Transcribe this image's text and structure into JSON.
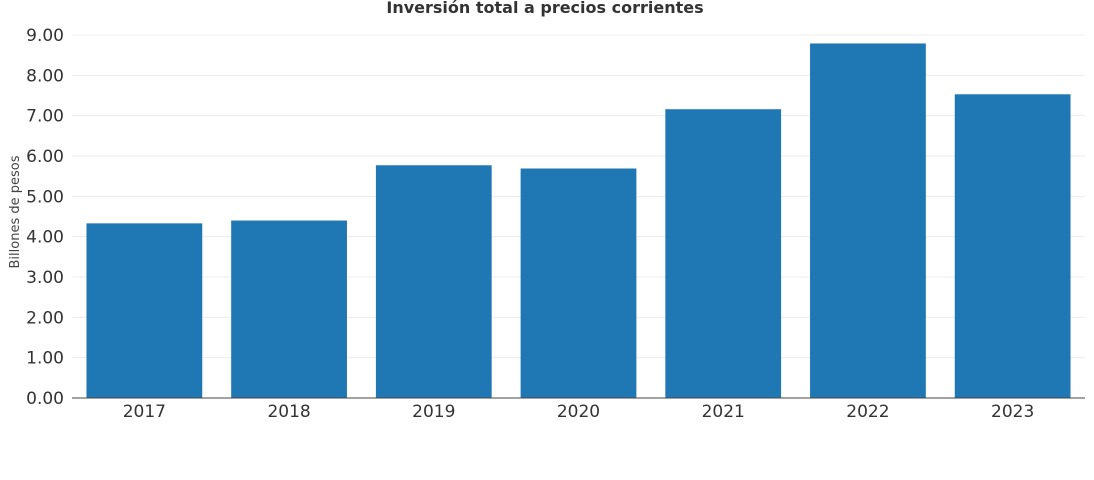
{
  "chart_data": {
    "type": "bar",
    "title": "Inversión total a precios corrientes",
    "xlabel": "",
    "ylabel": "Billones de pesos",
    "categories": [
      "2017",
      "2018",
      "2019",
      "2020",
      "2021",
      "2022",
      "2023"
    ],
    "values": [
      4.33,
      4.4,
      5.77,
      5.69,
      7.16,
      8.79,
      7.53
    ],
    "ylim": [
      0,
      9
    ],
    "yticks": [
      "0.00",
      "1.00",
      "2.00",
      "3.00",
      "4.00",
      "5.00",
      "6.00",
      "7.00",
      "8.00",
      "9.00"
    ],
    "grid": true,
    "legend": "none",
    "bar_color": "#1f77b4"
  }
}
